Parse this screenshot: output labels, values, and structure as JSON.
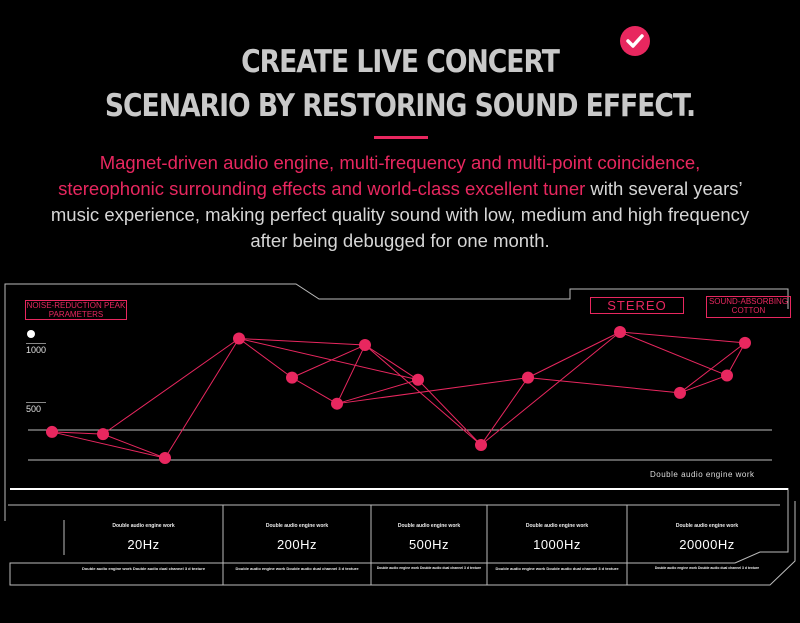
{
  "heading": {
    "line1": "CREATE LIVE CONCERT",
    "line2": "SCENARIO BY RESTORING SOUND EFFECT."
  },
  "description": {
    "highlight": "Magnet-driven audio engine, multi-frequency and multi-point coincidence, stereophonic surrounding effects and world-class excellent tuner",
    "normal": " with several years’　music experience, making perfect quality sound with low, medium and high frequency after being debugged for one month."
  },
  "labels": {
    "noise": "NOISE-REDUCTION PEAK PARAMETERS",
    "stereo": "STEREO",
    "sound": "SOUND-ABSORBING COTTON",
    "y_high": "1000",
    "y_low": "500",
    "engine": "Double audio engine work"
  },
  "chart_data": {
    "type": "scatter",
    "ylim": [
      0,
      1000
    ],
    "points": [
      {
        "x": 1,
        "y": 540
      },
      {
        "x": 2,
        "y": 530
      },
      {
        "x": 3,
        "y": 420
      },
      {
        "x": 4,
        "y": 970
      },
      {
        "x": 5,
        "y": 790
      },
      {
        "x": 6,
        "y": 670
      },
      {
        "x": 7,
        "y": 940
      },
      {
        "x": 8,
        "y": 780
      },
      {
        "x": 9,
        "y": 480
      },
      {
        "x": 10,
        "y": 790
      },
      {
        "x": 11,
        "y": 1000
      },
      {
        "x": 12,
        "y": 720
      },
      {
        "x": 13,
        "y": 800
      },
      {
        "x": 14,
        "y": 950
      }
    ],
    "edges": [
      [
        0,
        1
      ],
      [
        1,
        2
      ],
      [
        0,
        2
      ],
      [
        2,
        3
      ],
      [
        3,
        4
      ],
      [
        3,
        6
      ],
      [
        4,
        6
      ],
      [
        4,
        5
      ],
      [
        5,
        6
      ],
      [
        1,
        3
      ],
      [
        3,
        7
      ],
      [
        6,
        7
      ],
      [
        5,
        7
      ],
      [
        6,
        8
      ],
      [
        7,
        8
      ],
      [
        8,
        9
      ],
      [
        5,
        9
      ],
      [
        9,
        10
      ],
      [
        10,
        12
      ],
      [
        10,
        13
      ],
      [
        9,
        11
      ],
      [
        11,
        13
      ],
      [
        12,
        13
      ],
      [
        8,
        10
      ],
      [
        11,
        12
      ]
    ],
    "color": "#e8275f"
  },
  "frequencies": [
    {
      "header": "Double audio engine work",
      "value": "20Hz",
      "detail": "Double audio engine work Double audio dual channel 3 d texture"
    },
    {
      "header": "Double audio engine work",
      "value": "200Hz",
      "detail": "Double audio engine work Double audio dual channel 3 d texture"
    },
    {
      "header": "Double audio engine work",
      "value": "500Hz",
      "detail": "Double audio engine work Double audio dual channel 3 d texture"
    },
    {
      "header": "Double audio engine work",
      "value": "1000Hz",
      "detail": "Double audio engine work Double audio dual channel 3 d texture"
    },
    {
      "header": "Double audio engine work",
      "value": "20000Hz",
      "detail": "Double audio engine work Double audio dual channel 3 d texture"
    }
  ],
  "colors": {
    "accent": "#e8275f",
    "text": "#d6d6d6"
  }
}
